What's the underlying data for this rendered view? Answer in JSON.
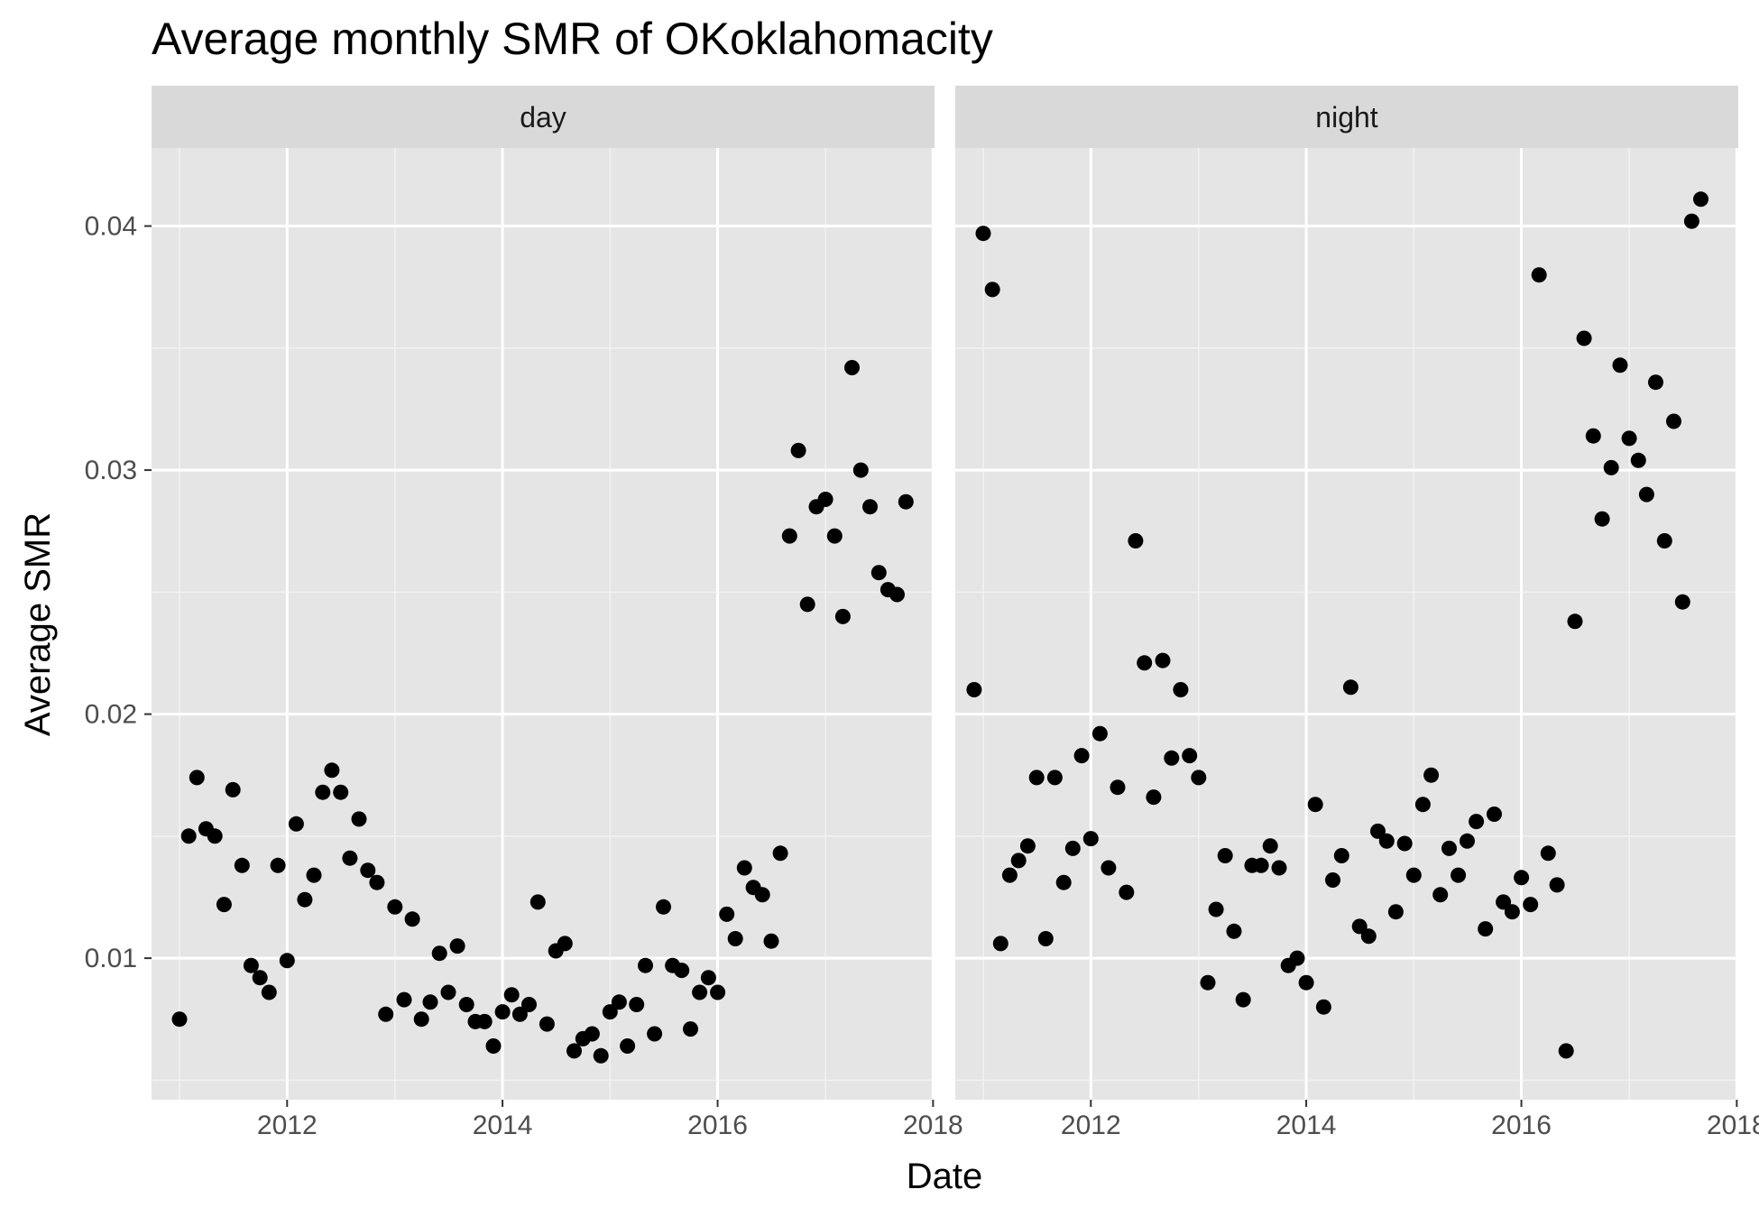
{
  "chart_data": {
    "type": "scatter",
    "title": "Average monthly SMR of OKoklahomacity",
    "xlabel": "Date",
    "ylabel": "Average SMR",
    "x_ticks": [
      "2012",
      "2014",
      "2016",
      "2018"
    ],
    "y_ticks": [
      "0.01",
      "0.02",
      "0.03",
      "0.04"
    ],
    "xlim": [
      "2010-09-28",
      "2018-01-06"
    ],
    "ylim": [
      0.0042,
      0.0432
    ],
    "grid": true,
    "point_color": "#000000",
    "panel_background": "#e5e5e5",
    "strip_background": "#d9d9d9",
    "panels": [
      {
        "label": "day",
        "points": [
          [
            "2011-01-01",
            0.0075
          ],
          [
            "2011-02-01",
            0.015
          ],
          [
            "2011-03-01",
            0.0174
          ],
          [
            "2011-04-01",
            0.0153
          ],
          [
            "2011-05-01",
            0.015
          ],
          [
            "2011-06-01",
            0.0122
          ],
          [
            "2011-07-01",
            0.0169
          ],
          [
            "2011-08-01",
            0.0138
          ],
          [
            "2011-09-01",
            0.0097
          ],
          [
            "2011-10-01",
            0.0092
          ],
          [
            "2011-11-01",
            0.0086
          ],
          [
            "2011-12-01",
            0.0138
          ],
          [
            "2012-01-01",
            0.0099
          ],
          [
            "2012-02-01",
            0.0155
          ],
          [
            "2012-03-01",
            0.0124
          ],
          [
            "2012-04-01",
            0.0134
          ],
          [
            "2012-05-01",
            0.0168
          ],
          [
            "2012-06-01",
            0.0177
          ],
          [
            "2012-07-01",
            0.0168
          ],
          [
            "2012-08-01",
            0.0141
          ],
          [
            "2012-09-01",
            0.0157
          ],
          [
            "2012-10-01",
            0.0136
          ],
          [
            "2012-11-01",
            0.0131
          ],
          [
            "2012-12-01",
            0.0077
          ],
          [
            "2013-01-01",
            0.0121
          ],
          [
            "2013-02-01",
            0.0083
          ],
          [
            "2013-03-01",
            0.0116
          ],
          [
            "2013-04-01",
            0.0075
          ],
          [
            "2013-05-01",
            0.0082
          ],
          [
            "2013-06-01",
            0.0102
          ],
          [
            "2013-07-01",
            0.0086
          ],
          [
            "2013-08-01",
            0.0105
          ],
          [
            "2013-09-01",
            0.0081
          ],
          [
            "2013-10-01",
            0.0074
          ],
          [
            "2013-11-01",
            0.0074
          ],
          [
            "2013-12-01",
            0.0064
          ],
          [
            "2014-01-01",
            0.0078
          ],
          [
            "2014-02-01",
            0.0085
          ],
          [
            "2014-03-01",
            0.0077
          ],
          [
            "2014-04-01",
            0.0081
          ],
          [
            "2014-05-01",
            0.0123
          ],
          [
            "2014-06-01",
            0.0073
          ],
          [
            "2014-07-01",
            0.0103
          ],
          [
            "2014-08-01",
            0.0106
          ],
          [
            "2014-09-01",
            0.0062
          ],
          [
            "2014-10-01",
            0.0067
          ],
          [
            "2014-11-01",
            0.0069
          ],
          [
            "2014-12-01",
            0.006
          ],
          [
            "2015-01-01",
            0.0078
          ],
          [
            "2015-02-01",
            0.0082
          ],
          [
            "2015-03-01",
            0.0064
          ],
          [
            "2015-04-01",
            0.0081
          ],
          [
            "2015-05-01",
            0.0097
          ],
          [
            "2015-06-01",
            0.0069
          ],
          [
            "2015-07-01",
            0.0121
          ],
          [
            "2015-08-01",
            0.0097
          ],
          [
            "2015-09-01",
            0.0095
          ],
          [
            "2015-10-01",
            0.0071
          ],
          [
            "2015-11-01",
            0.0086
          ],
          [
            "2015-12-01",
            0.0092
          ],
          [
            "2016-01-01",
            0.0086
          ],
          [
            "2016-02-01",
            0.0118
          ],
          [
            "2016-03-01",
            0.0108
          ],
          [
            "2016-04-01",
            0.0137
          ],
          [
            "2016-05-01",
            0.0129
          ],
          [
            "2016-06-01",
            0.0126
          ],
          [
            "2016-07-01",
            0.0107
          ],
          [
            "2016-08-01",
            0.0143
          ],
          [
            "2016-09-01",
            0.0273
          ],
          [
            "2016-10-01",
            0.0308
          ],
          [
            "2016-11-01",
            0.0245
          ],
          [
            "2016-12-01",
            0.0285
          ],
          [
            "2017-01-01",
            0.0288
          ],
          [
            "2017-02-01",
            0.0273
          ],
          [
            "2017-03-01",
            0.024
          ],
          [
            "2017-04-01",
            0.0342
          ],
          [
            "2017-05-01",
            0.03
          ],
          [
            "2017-06-01",
            0.0285
          ],
          [
            "2017-07-01",
            0.0258
          ],
          [
            "2017-08-01",
            0.0251
          ],
          [
            "2017-09-01",
            0.0249
          ],
          [
            "2017-10-01",
            0.0287
          ]
        ]
      },
      {
        "label": "night",
        "points": [
          [
            "2010-12-01",
            0.021
          ],
          [
            "2011-01-01",
            0.0397
          ],
          [
            "2011-02-01",
            0.0374
          ],
          [
            "2011-03-01",
            0.0106
          ],
          [
            "2011-04-01",
            0.0134
          ],
          [
            "2011-05-01",
            0.014
          ],
          [
            "2011-06-01",
            0.0146
          ],
          [
            "2011-07-01",
            0.0174
          ],
          [
            "2011-08-01",
            0.0108
          ],
          [
            "2011-09-01",
            0.0174
          ],
          [
            "2011-10-01",
            0.0131
          ],
          [
            "2011-11-01",
            0.0145
          ],
          [
            "2011-12-01",
            0.0183
          ],
          [
            "2012-01-01",
            0.0149
          ],
          [
            "2012-02-01",
            0.0192
          ],
          [
            "2012-03-01",
            0.0137
          ],
          [
            "2012-04-01",
            0.017
          ],
          [
            "2012-05-01",
            0.0127
          ],
          [
            "2012-06-01",
            0.0271
          ],
          [
            "2012-07-01",
            0.0221
          ],
          [
            "2012-08-01",
            0.0166
          ],
          [
            "2012-09-01",
            0.0222
          ],
          [
            "2012-10-01",
            0.0182
          ],
          [
            "2012-11-01",
            0.021
          ],
          [
            "2012-12-01",
            0.0183
          ],
          [
            "2013-01-01",
            0.0174
          ],
          [
            "2013-02-01",
            0.009
          ],
          [
            "2013-03-01",
            0.012
          ],
          [
            "2013-04-01",
            0.0142
          ],
          [
            "2013-05-01",
            0.0111
          ],
          [
            "2013-06-01",
            0.0083
          ],
          [
            "2013-07-01",
            0.0138
          ],
          [
            "2013-08-01",
            0.0138
          ],
          [
            "2013-09-01",
            0.0146
          ],
          [
            "2013-10-01",
            0.0137
          ],
          [
            "2013-11-01",
            0.0097
          ],
          [
            "2013-12-01",
            0.01
          ],
          [
            "2014-01-01",
            0.009
          ],
          [
            "2014-02-01",
            0.0163
          ],
          [
            "2014-03-01",
            0.008
          ],
          [
            "2014-04-01",
            0.0132
          ],
          [
            "2014-05-01",
            0.0142
          ],
          [
            "2014-06-01",
            0.0211
          ],
          [
            "2014-07-01",
            0.0113
          ],
          [
            "2014-08-01",
            0.0109
          ],
          [
            "2014-09-01",
            0.0152
          ],
          [
            "2014-10-01",
            0.0148
          ],
          [
            "2014-11-01",
            0.0119
          ],
          [
            "2014-12-01",
            0.0147
          ],
          [
            "2015-01-01",
            0.0134
          ],
          [
            "2015-02-01",
            0.0163
          ],
          [
            "2015-03-01",
            0.0175
          ],
          [
            "2015-04-01",
            0.0126
          ],
          [
            "2015-05-01",
            0.0145
          ],
          [
            "2015-06-01",
            0.0134
          ],
          [
            "2015-07-01",
            0.0148
          ],
          [
            "2015-08-01",
            0.0156
          ],
          [
            "2015-09-01",
            0.0112
          ],
          [
            "2015-10-01",
            0.0159
          ],
          [
            "2015-11-01",
            0.0123
          ],
          [
            "2015-12-01",
            0.0119
          ],
          [
            "2016-01-01",
            0.0133
          ],
          [
            "2016-02-01",
            0.0122
          ],
          [
            "2016-03-01",
            0.038
          ],
          [
            "2016-04-01",
            0.0143
          ],
          [
            "2016-05-01",
            0.013
          ],
          [
            "2016-06-01",
            0.0062
          ],
          [
            "2016-07-01",
            0.0238
          ],
          [
            "2016-08-01",
            0.0354
          ],
          [
            "2016-09-01",
            0.0314
          ],
          [
            "2016-10-01",
            0.028
          ],
          [
            "2016-11-01",
            0.0301
          ],
          [
            "2016-12-01",
            0.0343
          ],
          [
            "2017-01-01",
            0.0313
          ],
          [
            "2017-02-01",
            0.0304
          ],
          [
            "2017-03-01",
            0.029
          ],
          [
            "2017-04-01",
            0.0336
          ],
          [
            "2017-05-01",
            0.0271
          ],
          [
            "2017-06-01",
            0.032
          ],
          [
            "2017-07-01",
            0.0246
          ],
          [
            "2017-08-01",
            0.0402
          ],
          [
            "2017-09-01",
            0.0411
          ]
        ]
      }
    ]
  }
}
